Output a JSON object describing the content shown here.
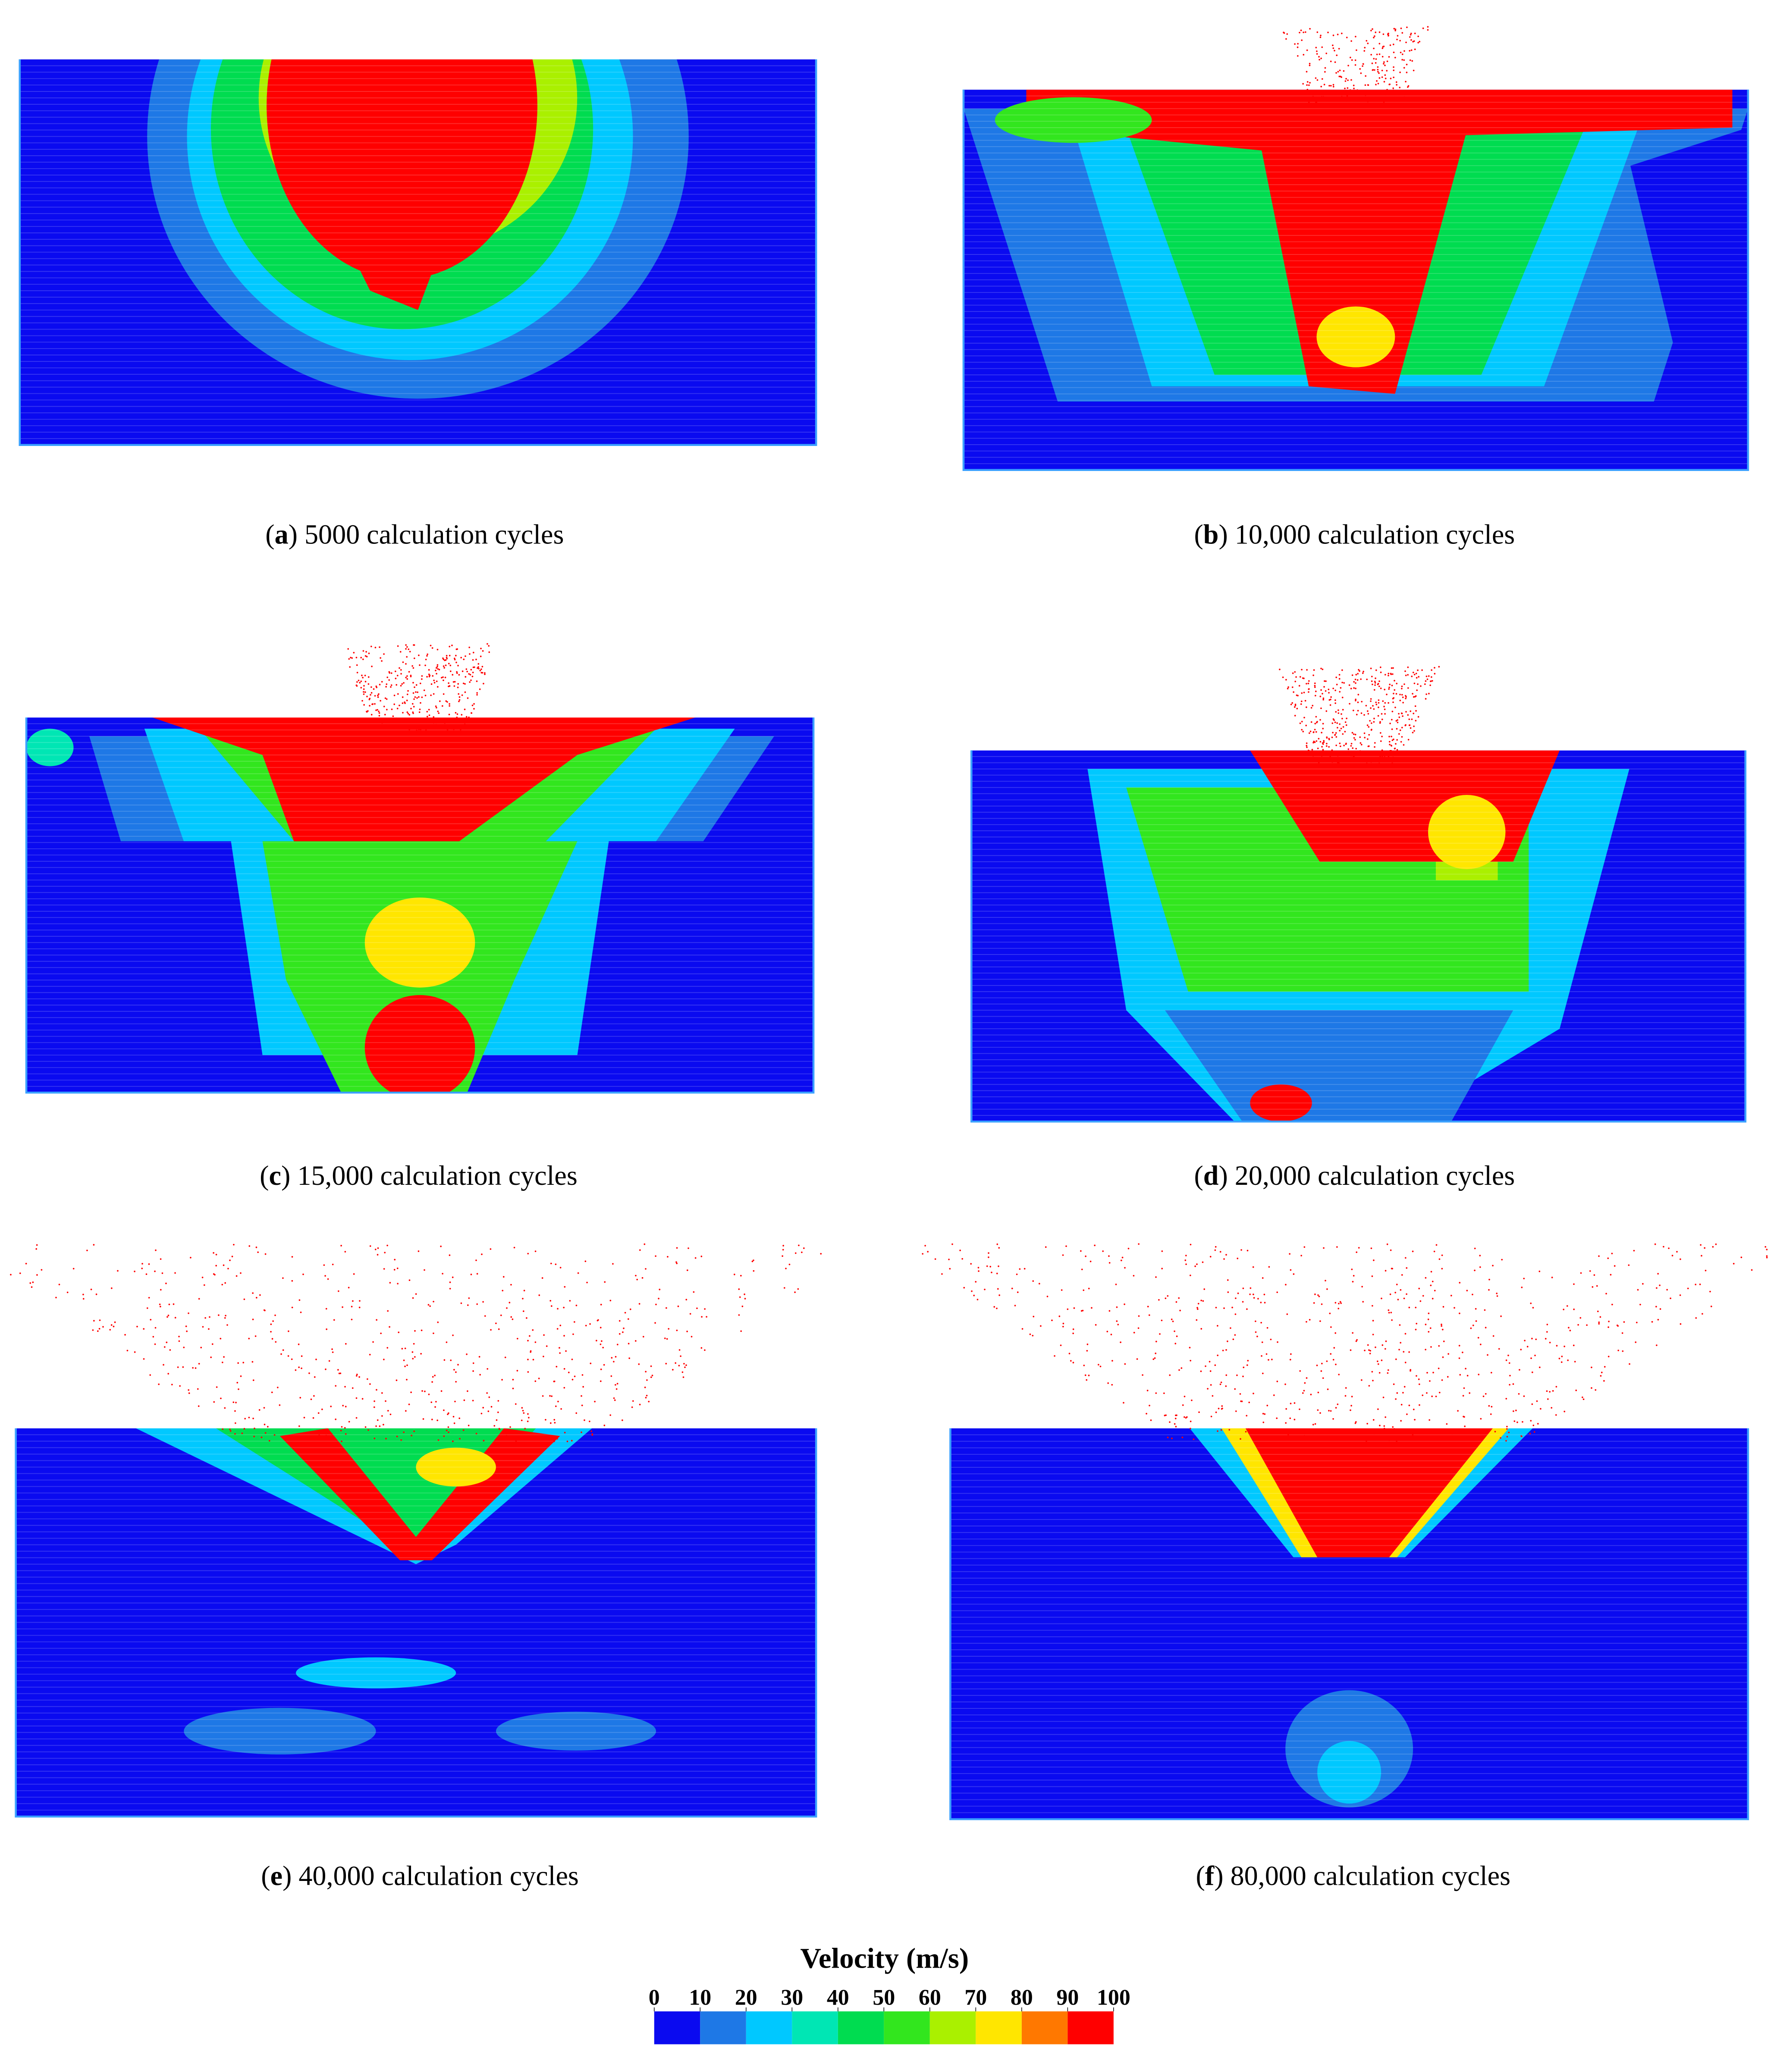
{
  "panels": [
    {
      "caption": [
        "(",
        "a",
        ") 5000 calculation cycles"
      ]
    },
    {
      "caption": [
        "(",
        "b",
        ") 10,000 calculation cycles"
      ]
    },
    {
      "caption": [
        "(",
        "c",
        ") 15,000 calculation cycles"
      ]
    },
    {
      "caption": [
        "(",
        "d",
        ") 20,000 calculation cycles"
      ]
    },
    {
      "caption": [
        "(",
        "e",
        ") 40,000 calculation cycles"
      ]
    },
    {
      "caption": [
        "(",
        "f",
        ") 80,000 calculation cycles"
      ]
    }
  ],
  "colorbar": {
    "title": "Velocity (m/s)",
    "lim": [
      0,
      100
    ],
    "ticks": [
      0,
      10,
      20,
      30,
      40,
      50,
      60,
      70,
      80,
      90,
      100
    ],
    "colors": [
      "#0a0af0",
      "#1e78e6",
      "#00c8ff",
      "#00e6b4",
      "#00dc50",
      "#32e61e",
      "#aaf000",
      "#ffe600",
      "#ff7800",
      "#ff0000"
    ]
  }
}
